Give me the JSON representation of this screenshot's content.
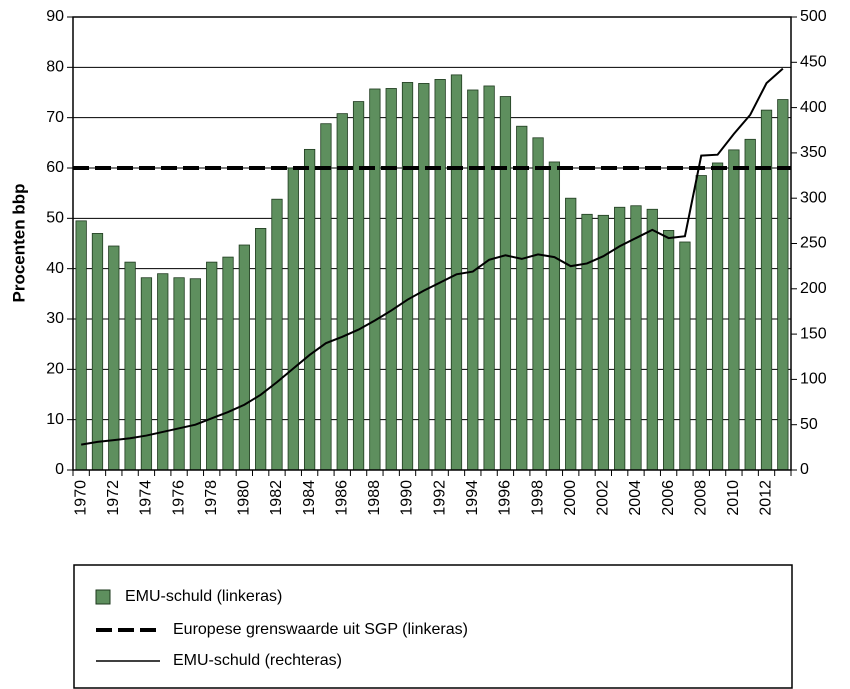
{
  "chart_data": {
    "type": "bar",
    "ylabel": "Procenten bbp",
    "categories": [
      "1970",
      null,
      "1972",
      null,
      "1974",
      null,
      "1976",
      null,
      "1978",
      null,
      "1980",
      null,
      "1982",
      null,
      "1984",
      null,
      "1986",
      null,
      "1988",
      null,
      "1990",
      null,
      "1992",
      null,
      "1994",
      null,
      "1996",
      null,
      "1998",
      null,
      "2000",
      null,
      "2002",
      null,
      "2004",
      null,
      "2006",
      null,
      "2008",
      null,
      "2010",
      null,
      "2012",
      null
    ],
    "series": [
      {
        "name": "EMU-schuld (linkeras)",
        "type": "bar",
        "color": "#5e8f5e",
        "values": [
          49.5,
          47,
          44.5,
          41.3,
          38.2,
          39,
          38.2,
          38,
          41.3,
          42.3,
          44.7,
          48,
          53.8,
          60,
          63.7,
          68.8,
          70.8,
          73.2,
          75.7,
          75.8,
          77,
          76.8,
          77.6,
          78.5,
          75.5,
          76.3,
          74.2,
          68.3,
          66,
          61.2,
          54,
          50.8,
          50.6,
          52.2,
          52.5,
          51.8,
          47.6,
          45.3,
          58.5,
          61,
          63.6,
          65.7,
          71.5,
          73.6
        ]
      },
      {
        "name": "EMU-schuld (rechteras)",
        "type": "line",
        "axis": "y2",
        "color": "#000000",
        "values": [
          28,
          31,
          33,
          35,
          38,
          42,
          46,
          50,
          57,
          64,
          72,
          83,
          97,
          112,
          127,
          140,
          147,
          155,
          165,
          176,
          188,
          198,
          207,
          216,
          219,
          232,
          237,
          233,
          238,
          235,
          225,
          228,
          236,
          247,
          256,
          265,
          256,
          258,
          347,
          348,
          371,
          392,
          427,
          443
        ]
      }
    ],
    "reference": {
      "name": "Europese grenswaarde uit SGP (linkeras)",
      "value": 60,
      "color": "#000000"
    },
    "ylim": [
      0,
      90
    ],
    "yticks": [
      0,
      10,
      20,
      30,
      40,
      50,
      60,
      70,
      80,
      90
    ],
    "y2lim": [
      0,
      500
    ],
    "y2ticks": [
      0,
      50,
      100,
      150,
      200,
      250,
      300,
      350,
      400,
      450,
      500
    ],
    "grid": true
  }
}
